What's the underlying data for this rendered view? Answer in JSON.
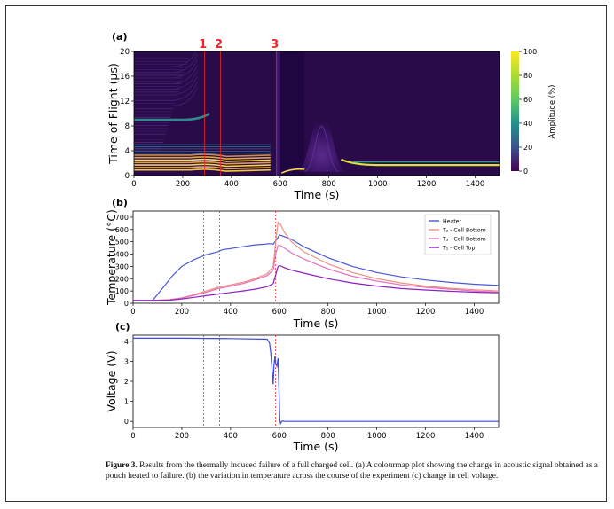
{
  "panel_a": {
    "label": "(a)",
    "ylabel": "Time of Flight (µs)",
    "xlabel": "Time (s)",
    "colorbar_label": "Amplitude (%)",
    "markers": [
      "1",
      "2",
      "3"
    ],
    "marker_color": "#e8262b"
  },
  "panel_b": {
    "label": "(b)",
    "ylabel": "Temperature (°C)",
    "xlabel": "Time (s)"
  },
  "panel_c": {
    "label": "(c)",
    "ylabel": "Voltage (V)",
    "xlabel": "Time (s)"
  },
  "caption": {
    "figure_label": "Figure 3.",
    "text": "Results from the thermally induced failure of a full charged cell. (a) A colourmap plot showing the change in acoustic signal obtained as a pouch heated to failure. (b) the variation in temperature across the course of the experiment (c) change in cell voltage."
  },
  "chart_data": [
    {
      "type": "heatmap",
      "xlim": [
        0,
        1500
      ],
      "ylim": [
        0,
        20
      ],
      "xticks": [
        "0",
        "200",
        "400",
        "600",
        "800",
        "1000",
        "1200",
        "1400"
      ],
      "yticks": [
        "0",
        "4",
        "8",
        "12",
        "16",
        "20"
      ],
      "colorbar": {
        "range": [
          0,
          100
        ],
        "ticks": [
          "0",
          "20",
          "40",
          "60",
          "80",
          "100"
        ],
        "colormap": "viridis"
      },
      "event_lines": [
        290,
        355,
        585
      ],
      "features": {
        "main_echo_tof_us": 2.8,
        "echo_at_9us_until_s": 310,
        "late_echo_tof_us": 1.7,
        "peak_time_s": 770,
        "peak_tof_us": 9.6
      }
    },
    {
      "type": "line",
      "xlim": [
        0,
        1500
      ],
      "ylim": [
        0,
        750
      ],
      "xticks": [
        "0",
        "200",
        "400",
        "600",
        "800",
        "1000",
        "1200",
        "1400"
      ],
      "yticks": [
        "0",
        "100",
        "200",
        "300",
        "400",
        "500",
        "600",
        "700"
      ],
      "event_lines": [
        290,
        355,
        585
      ],
      "legend_position": "top-right",
      "series": [
        {
          "name": "Heater",
          "color": "#4a56d6",
          "x": [
            0,
            80,
            120,
            160,
            200,
            250,
            300,
            350,
            360,
            365,
            400,
            450,
            500,
            540,
            560,
            575,
            590,
            600,
            610,
            650,
            700,
            800,
            900,
            1000,
            1100,
            1200,
            1300,
            1400,
            1500
          ],
          "y": [
            22,
            22,
            120,
            220,
            300,
            355,
            395,
            420,
            430,
            435,
            445,
            460,
            475,
            480,
            485,
            480,
            520,
            555,
            550,
            520,
            460,
            370,
            300,
            250,
            215,
            190,
            170,
            155,
            145
          ]
        },
        {
          "name": "T₂ - Cell Bottom",
          "color": "#f09080",
          "x": [
            0,
            80,
            150,
            200,
            250,
            300,
            350,
            400,
            450,
            500,
            550,
            575,
            585,
            595,
            605,
            620,
            650,
            700,
            800,
            900,
            1000,
            1100,
            1200,
            1300,
            1400,
            1500
          ],
          "y": [
            22,
            22,
            30,
            45,
            70,
            100,
            130,
            150,
            170,
            200,
            240,
            300,
            500,
            660,
            640,
            580,
            500,
            420,
            320,
            250,
            200,
            165,
            140,
            122,
            110,
            100
          ]
        },
        {
          "name": "T₃ - Cell Bottom",
          "color": "#e46fbf",
          "x": [
            0,
            80,
            150,
            200,
            250,
            300,
            350,
            400,
            450,
            500,
            550,
            575,
            585,
            595,
            605,
            620,
            650,
            700,
            800,
            900,
            1000,
            1100,
            1200,
            1300,
            1400,
            1500
          ],
          "y": [
            22,
            22,
            28,
            42,
            65,
            90,
            120,
            140,
            160,
            190,
            225,
            270,
            400,
            470,
            470,
            450,
            410,
            360,
            280,
            220,
            180,
            150,
            130,
            115,
            100,
            90
          ]
        },
        {
          "name": "T₁ - Cell Top",
          "color": "#8a1fc4",
          "x": [
            0,
            80,
            150,
            200,
            250,
            300,
            350,
            400,
            450,
            500,
            550,
            575,
            585,
            595,
            605,
            620,
            650,
            700,
            800,
            900,
            1000,
            1100,
            1200,
            1300,
            1400,
            1500
          ],
          "y": [
            22,
            22,
            25,
            35,
            48,
            62,
            75,
            88,
            100,
            115,
            135,
            160,
            230,
            300,
            305,
            290,
            270,
            245,
            200,
            165,
            140,
            120,
            108,
            98,
            90,
            85
          ]
        }
      ]
    },
    {
      "type": "line",
      "xlim": [
        0,
        1500
      ],
      "ylim": [
        -0.3,
        4.3
      ],
      "xticks": [
        "0",
        "200",
        "400",
        "600",
        "800",
        "1000",
        "1200",
        "1400"
      ],
      "yticks": [
        "0",
        "1",
        "2",
        "3",
        "4"
      ],
      "event_lines": [
        290,
        355,
        585
      ],
      "series": [
        {
          "color": "#3b49d6",
          "x": [
            0,
            200,
            400,
            550,
            560,
            565,
            570,
            575,
            578,
            582,
            585,
            590,
            595,
            600,
            602,
            605,
            610,
            615,
            620,
            700,
            800,
            1000,
            1200,
            1400,
            1500
          ],
          "y": [
            4.15,
            4.15,
            4.13,
            4.1,
            3.9,
            3.4,
            2.6,
            1.85,
            2.8,
            3.25,
            2.9,
            2.75,
            3.15,
            1.0,
            0.1,
            -0.1,
            0.0,
            0.02,
            0.0,
            0.0,
            0.0,
            0.0,
            0.0,
            0.0,
            0.0
          ]
        }
      ]
    }
  ]
}
